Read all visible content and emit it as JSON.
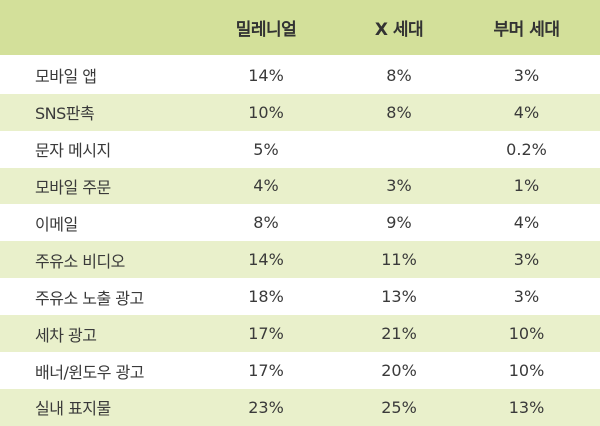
{
  "table": {
    "headers": [
      "",
      "밀레니얼",
      "X 세대",
      "부머 세대"
    ],
    "rows": [
      {
        "label": "모바일 앱",
        "values": [
          "14%",
          "8%",
          "3%"
        ]
      },
      {
        "label": "SNS판촉",
        "values": [
          "10%",
          "8%",
          "4%"
        ]
      },
      {
        "label": "문자 메시지",
        "values": [
          "5%",
          "",
          "0.2%"
        ]
      },
      {
        "label": "모바일 주문",
        "values": [
          "4%",
          "3%",
          "1%"
        ]
      },
      {
        "label": "이메일",
        "values": [
          "8%",
          "9%",
          "4%"
        ]
      },
      {
        "label": "주유소 비디오",
        "values": [
          "14%",
          "11%",
          "3%"
        ]
      },
      {
        "label": "주유소 노출 광고",
        "values": [
          "18%",
          "13%",
          "3%"
        ]
      },
      {
        "label": "세차 광고",
        "values": [
          "17%",
          "21%",
          "10%"
        ]
      },
      {
        "label": "배너/윈도우 광고",
        "values": [
          "17%",
          "20%",
          "10%"
        ]
      },
      {
        "label": "실내 표지물",
        "values": [
          "23%",
          "25%",
          "13%"
        ]
      }
    ]
  },
  "colors": {
    "header_bg": "#d3e09a",
    "stripe_bg": "#e9f0cb",
    "row_bg": "#ffffff"
  }
}
